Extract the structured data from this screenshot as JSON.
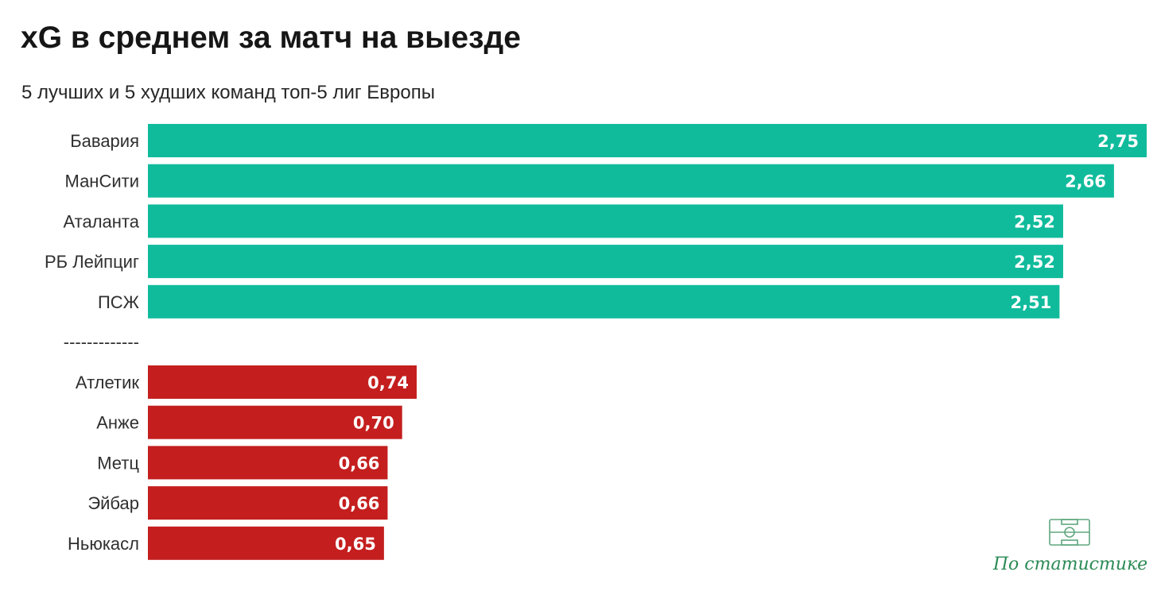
{
  "title": "xG в среднем за матч на выезде",
  "subtitle": "5 лучших и 5 худших команд топ-5 лиг Европы",
  "separator_label": "-------------",
  "logo": {
    "text": "По статистике",
    "icon": "football-pitch-icon",
    "color": "#2a8a55"
  },
  "colors": {
    "top": "#10bb9c",
    "bottom": "#c41e1e"
  },
  "chart_data": {
    "type": "bar",
    "orientation": "horizontal",
    "title": "xG в среднем за матч на выезде",
    "subtitle": "5 лучших и 5 худших команд топ-5 лиг Европы",
    "xlim": [
      0,
      2.75
    ],
    "grid": false,
    "series": [
      {
        "color": "#10bb9c",
        "categories": [
          "Бавария",
          "МанСити",
          "Аталанта",
          "РБ Лейпциг",
          "ПСЖ"
        ],
        "values": [
          2.75,
          2.66,
          2.52,
          2.52,
          2.51
        ],
        "labels": [
          "2,75",
          "2,66",
          "2,52",
          "2,52",
          "2,51"
        ]
      },
      {
        "color": "#c41e1e",
        "categories": [
          "Атлетик",
          "Анже",
          "Метц",
          "Эйбар",
          "Ньюкасл"
        ],
        "values": [
          0.74,
          0.7,
          0.66,
          0.66,
          0.65
        ],
        "labels": [
          "0,74",
          "0,70",
          "0,66",
          "0,66",
          "0,65"
        ]
      }
    ]
  }
}
